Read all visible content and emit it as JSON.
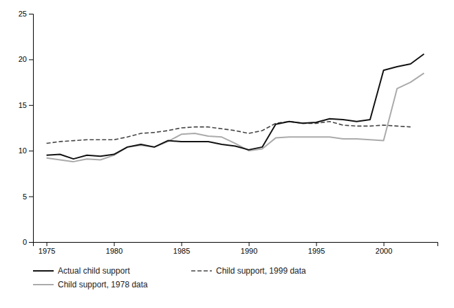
{
  "chart_data": {
    "type": "line",
    "x": [
      1975,
      1976,
      1977,
      1978,
      1979,
      1980,
      1981,
      1982,
      1983,
      1984,
      1985,
      1986,
      1987,
      1988,
      1989,
      1990,
      1991,
      1992,
      1993,
      1994,
      1995,
      1996,
      1997,
      1998,
      1999,
      2000,
      2001,
      2002,
      2003
    ],
    "series": [
      {
        "name": "Actual child support",
        "color": "#111111",
        "line_style": "solid",
        "values": [
          9.5,
          9.6,
          9.1,
          9.5,
          9.4,
          9.6,
          10.4,
          10.7,
          10.4,
          11.1,
          11.0,
          11.0,
          11.0,
          10.7,
          10.5,
          10.1,
          10.4,
          12.9,
          13.2,
          13.0,
          13.1,
          13.5,
          13.4,
          13.2,
          13.4,
          18.8,
          19.2,
          19.5,
          20.6
        ]
      },
      {
        "name": "Child support, 1999 data",
        "color": "#444444",
        "line_style": "dashed",
        "values": [
          10.8,
          11.0,
          11.1,
          11.2,
          11.2,
          11.2,
          11.5,
          11.9,
          12.0,
          12.2,
          12.5,
          12.6,
          12.6,
          12.4,
          12.2,
          11.9,
          12.2,
          13.0,
          13.2,
          13.0,
          13.0,
          13.2,
          12.8,
          12.7,
          12.7,
          12.8,
          12.7,
          12.6,
          null
        ]
      },
      {
        "name": "Child support, 1978 data",
        "color": "#aaaaaa",
        "line_style": "solid",
        "values": [
          9.2,
          9.0,
          8.8,
          9.1,
          9.0,
          9.5,
          10.4,
          10.6,
          10.4,
          11.0,
          11.8,
          11.9,
          11.6,
          11.5,
          10.8,
          10.0,
          10.2,
          11.4,
          11.5,
          11.5,
          11.5,
          11.5,
          11.3,
          11.3,
          11.2,
          11.1,
          16.8,
          17.5,
          18.5
        ]
      }
    ],
    "xlim": [
      1974,
      2004
    ],
    "ylim": [
      0,
      25
    ],
    "xticks": [
      1975,
      1980,
      1985,
      1990,
      1995,
      2000
    ],
    "yticks": [
      0,
      5,
      10,
      15,
      20,
      25
    ],
    "grid": false,
    "legend": "bottom"
  }
}
